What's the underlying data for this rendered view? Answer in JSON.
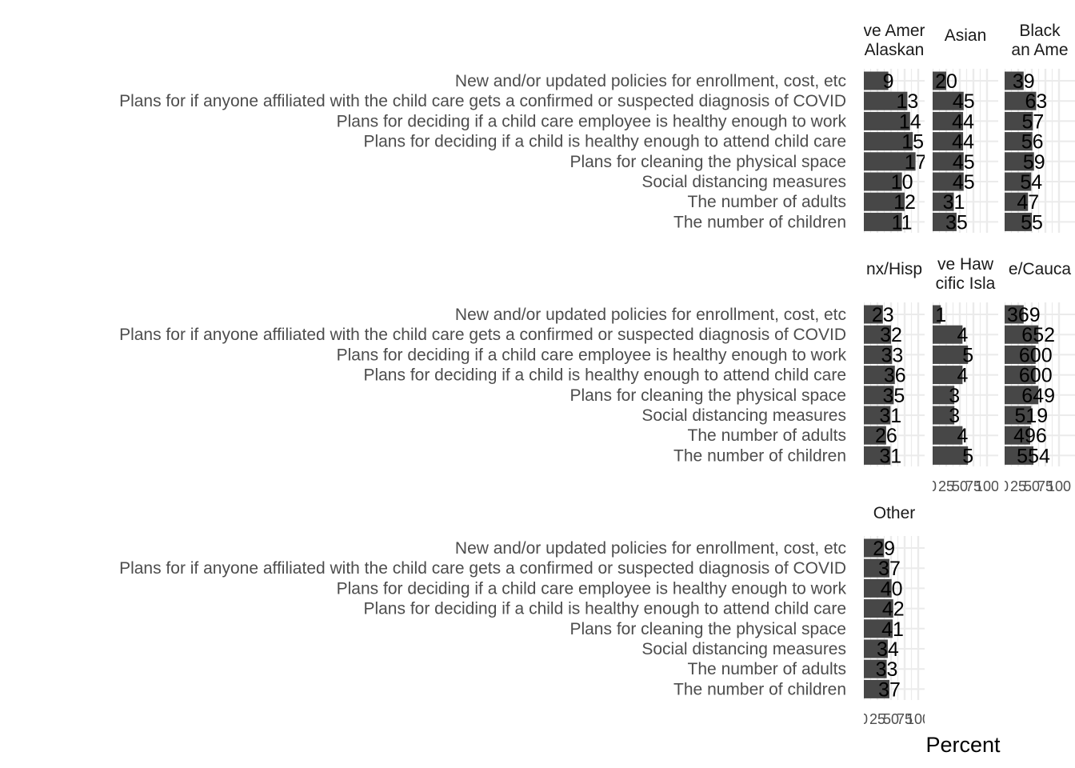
{
  "chart_data": {
    "type": "bar",
    "orientation": "horizontal",
    "xlabel": "Percent",
    "ylabel": "",
    "xlim": [
      0,
      100
    ],
    "x_ticks": [
      "0",
      "25",
      "50",
      "75",
      "100"
    ],
    "grid": true,
    "colors": {
      "bar": "#474747",
      "grid": "#ebebeb",
      "panel_bg": "#ffffff"
    },
    "categories": [
      "New and/or updated policies for enrollment, cost, etc",
      "Plans for if anyone affiliated with the child care gets a confirmed or suspected diagnosis of COVID",
      "Plans for deciding if a child care employee is healthy enough to work",
      "Plans for deciding if a child is healthy enough to attend child care",
      "Plans for cleaning the physical space",
      "Social distancing measures",
      "The number of adults",
      "The number of children"
    ],
    "facets": [
      {
        "strip_lines": [
          "ve Amer",
          "Alaskan"
        ],
        "percent": [
          45,
          80,
          85,
          90,
          95,
          70,
          75,
          70
        ],
        "labels": [
          "9",
          "13",
          "14",
          "15",
          "17",
          "10",
          "12",
          "11"
        ]
      },
      {
        "strip_lines": [
          "Asian"
        ],
        "percent": [
          25,
          57,
          56,
          56,
          57,
          57,
          39,
          44
        ],
        "labels": [
          "20",
          "45",
          "44",
          "44",
          "45",
          "45",
          "31",
          "35"
        ]
      },
      {
        "strip_lines": [
          "Black",
          "an Ame"
        ],
        "percent": [
          35,
          58,
          52,
          51,
          54,
          49,
          43,
          50
        ],
        "labels": [
          "39",
          "63",
          "57",
          "56",
          "59",
          "54",
          "47",
          "55"
        ]
      },
      {
        "strip_lines": [
          "nx/Hisp"
        ],
        "percent": [
          35,
          50,
          52,
          57,
          55,
          49,
          41,
          49
        ],
        "labels": [
          "23",
          "32",
          "33",
          "36",
          "35",
          "31",
          "26",
          "31"
        ]
      },
      {
        "strip_lines": [
          "ve Haw",
          "cific Isla"
        ],
        "percent": [
          15,
          55,
          65,
          55,
          40,
          40,
          55,
          65
        ],
        "labels": [
          "1",
          "4",
          "5",
          "4",
          "3",
          "3",
          "4",
          "5"
        ]
      },
      {
        "strip_lines": [
          "e/Cauca"
        ],
        "percent": [
          35,
          62,
          57,
          57,
          62,
          49,
          47,
          53
        ],
        "labels": [
          "369",
          "652",
          "600",
          "600",
          "649",
          "519",
          "496",
          "554"
        ]
      },
      {
        "strip_lines": [
          "Other"
        ],
        "percent": [
          37,
          47,
          51,
          54,
          53,
          44,
          42,
          47
        ],
        "labels": [
          "29",
          "37",
          "40",
          "42",
          "41",
          "34",
          "33",
          "37"
        ]
      }
    ]
  }
}
